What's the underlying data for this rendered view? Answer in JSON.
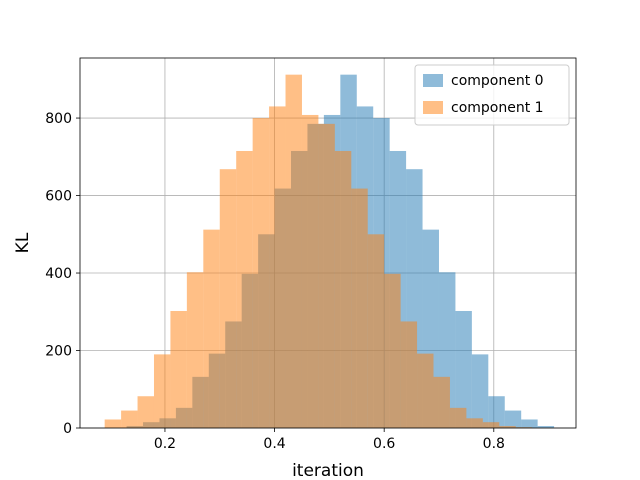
{
  "chart_data": {
    "type": "histogram",
    "title": "",
    "xlabel": "iteration",
    "ylabel": "KL",
    "xlim": [
      0.045,
      0.95
    ],
    "ylim": [
      0,
      955
    ],
    "xticks": [
      0.2,
      0.4,
      0.6,
      0.8
    ],
    "yticks": [
      0,
      200,
      400,
      600,
      800
    ],
    "grid": true,
    "legend_position": "top-right",
    "series": [
      {
        "name": "component 0",
        "color": "#1f77b4",
        "opacity": 0.5,
        "bin_edges": [
          0.13,
          0.16,
          0.19,
          0.22,
          0.25,
          0.28,
          0.31,
          0.34,
          0.37,
          0.4,
          0.43,
          0.46,
          0.49,
          0.52,
          0.55,
          0.58,
          0.61,
          0.64,
          0.67,
          0.7,
          0.73,
          0.76,
          0.79,
          0.82,
          0.85,
          0.88,
          0.91
        ],
        "counts": [
          5,
          15,
          25,
          52,
          132,
          192,
          275,
          398,
          500,
          618,
          715,
          785,
          808,
          912,
          830,
          800,
          715,
          668,
          512,
          402,
          302,
          190,
          82,
          45,
          22,
          5
        ]
      },
      {
        "name": "component 1",
        "color": "#ff7f0e",
        "opacity": 0.5,
        "bin_edges": [
          0.09,
          0.12,
          0.15,
          0.18,
          0.21,
          0.24,
          0.27,
          0.3,
          0.33,
          0.36,
          0.39,
          0.42,
          0.45,
          0.48,
          0.51,
          0.54,
          0.57,
          0.6,
          0.63,
          0.66,
          0.69,
          0.72,
          0.75,
          0.78,
          0.81,
          0.84,
          0.87
        ],
        "counts": [
          22,
          45,
          82,
          190,
          302,
          402,
          512,
          668,
          715,
          800,
          830,
          912,
          808,
          785,
          715,
          618,
          500,
          398,
          275,
          192,
          132,
          52,
          25,
          15,
          5,
          2
        ]
      }
    ]
  }
}
